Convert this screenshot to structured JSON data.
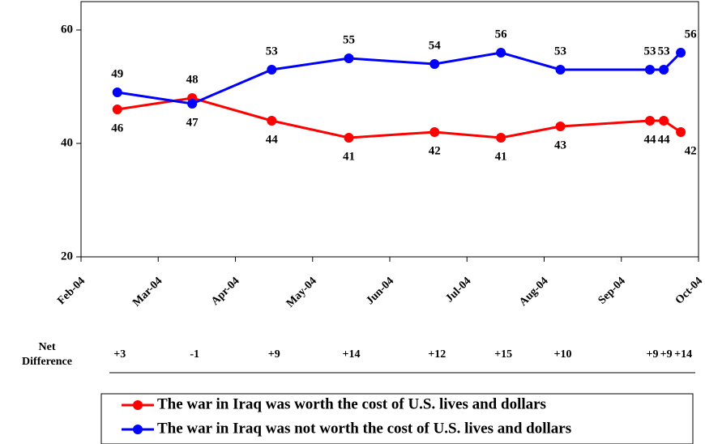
{
  "chart_data": {
    "type": "line",
    "x": [
      0.47,
      1.44,
      2.47,
      3.47,
      4.58,
      5.44,
      6.21,
      7.37,
      7.55,
      7.77
    ],
    "xlim": [
      0,
      8
    ],
    "xticks": [
      {
        "value": 0,
        "label": "Feb-04"
      },
      {
        "value": 1,
        "label": "Mar-04"
      },
      {
        "value": 2,
        "label": "Apr-04"
      },
      {
        "value": 3,
        "label": "May-04"
      },
      {
        "value": 4,
        "label": "Jun-04"
      },
      {
        "value": 5,
        "label": "Jul-04"
      },
      {
        "value": 6,
        "label": "Aug-04"
      },
      {
        "value": 7,
        "label": "Sep-04"
      },
      {
        "value": 8,
        "label": "Oct-04"
      }
    ],
    "ylim": [
      20,
      65
    ],
    "yticks": [
      20,
      40,
      60
    ],
    "grid": false,
    "series": [
      {
        "name": "The war in Iraq was worth the cost of U.S. lives and dollars",
        "color": "#ff0000",
        "values": [
          46,
          48,
          44,
          41,
          42,
          41,
          43,
          44,
          44,
          42
        ]
      },
      {
        "name": "The war in Iraq was not worth the cost of U.S. lives and dollars",
        "color": "#0000ff",
        "values": [
          49,
          47,
          53,
          55,
          54,
          56,
          53,
          53,
          53,
          56
        ]
      }
    ],
    "net_difference": {
      "label": "Net Difference",
      "values": [
        "+3",
        "-1",
        "+9",
        "+14",
        "+12",
        "+15",
        "+10",
        "+9",
        "+9",
        "+14"
      ]
    },
    "legend": "bottom"
  }
}
